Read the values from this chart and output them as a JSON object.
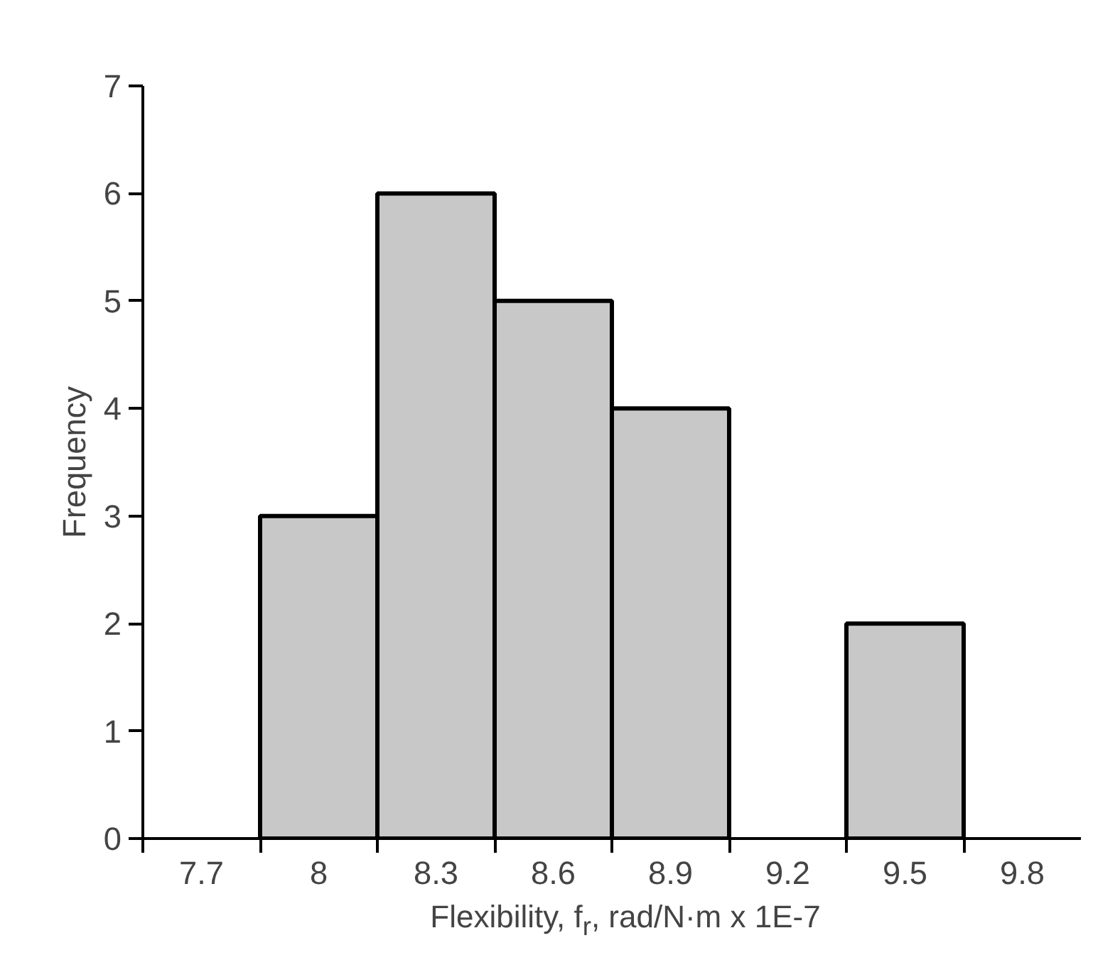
{
  "chart_data": {
    "type": "histogram",
    "xlabel": "Flexibility, f$_{r}$, rad/N·m x 1E-7",
    "ylabel": "Frequency",
    "bins": [
      7.55,
      7.85,
      8.15,
      8.45,
      8.75,
      9.05,
      9.35,
      9.65,
      9.95
    ],
    "values": [
      0,
      3,
      6,
      5,
      4,
      0,
      2,
      0
    ],
    "color": "#c8c8c8",
    "xlim": [
      7.55,
      9.95
    ],
    "ylim": [
      0,
      7
    ],
    "yticks": [
      0,
      1,
      2,
      3,
      4,
      5,
      6,
      7
    ],
    "xticks": [
      {
        "value": 7.55,
        "label": null
      },
      {
        "value": 7.7,
        "label": "7.7"
      },
      {
        "value": 7.85,
        "label": null
      },
      {
        "value": 8.0,
        "label": "8"
      },
      {
        "value": 8.15,
        "label": null
      },
      {
        "value": 8.3,
        "label": "8.3"
      },
      {
        "value": 8.45,
        "label": null
      },
      {
        "value": 8.6,
        "label": "8.6"
      },
      {
        "value": 8.75,
        "label": null
      },
      {
        "value": 8.9,
        "label": "8.9"
      },
      {
        "value": 9.05,
        "label": null
      },
      {
        "value": 9.2,
        "label": "9.2"
      },
      {
        "value": 9.35,
        "label": null
      },
      {
        "value": 9.5,
        "label": "9.5"
      },
      {
        "value": 9.65,
        "label": null
      },
      {
        "value": 9.8,
        "label": "9.8"
      }
    ],
    "grid": false
  }
}
